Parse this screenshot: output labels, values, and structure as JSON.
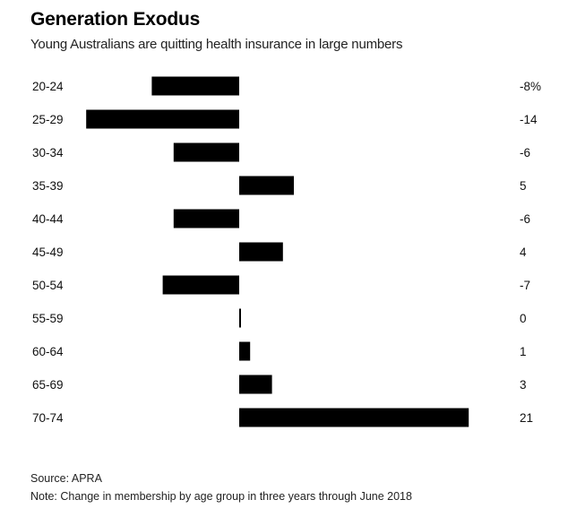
{
  "header": {
    "title": "Generation Exodus",
    "subtitle": "Young Australians are quitting health insurance in large numbers"
  },
  "footer": {
    "source": "Source: APRA",
    "note": "Note: Change in membership by age group in three years through June 2018"
  },
  "chart_data": {
    "type": "bar",
    "orientation": "horizontal",
    "categories": [
      "20-24",
      "25-29",
      "30-34",
      "35-39",
      "40-44",
      "45-49",
      "50-54",
      "55-59",
      "60-64",
      "65-69",
      "70-74"
    ],
    "values": [
      -8,
      -14,
      -6,
      5,
      -6,
      4,
      -7,
      0,
      1,
      3,
      21
    ],
    "value_labels": [
      "-8%",
      "-14",
      "-6",
      "5",
      "-6",
      "4",
      "-7",
      "0",
      "1",
      "3",
      "21"
    ],
    "unit": "%",
    "bar_color": "#000000",
    "xlim": [
      -14,
      21
    ],
    "grid": false,
    "legend": "none"
  }
}
